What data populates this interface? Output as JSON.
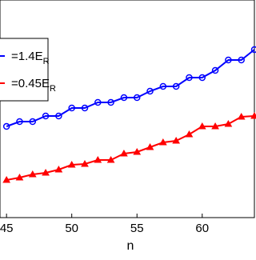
{
  "chart_data": {
    "type": "line",
    "xlabel": "n",
    "x": [
      45,
      46,
      47,
      48,
      49,
      50,
      51,
      52,
      53,
      54,
      55,
      56,
      57,
      58,
      59,
      60,
      61,
      62,
      63,
      64
    ],
    "series": [
      {
        "name": "=1.4E",
        "name_sub": "R",
        "color": "#0000ff",
        "marker": "circle",
        "values": [
          114,
          120,
          120,
          127,
          127,
          137,
          137,
          144,
          144,
          150,
          150,
          158,
          164,
          164,
          175,
          175,
          184,
          197,
          197,
          210
        ]
      },
      {
        "name": "=0.45E",
        "name_sub": "R",
        "color": "#ff0000",
        "marker": "triangle",
        "values": [
          47,
          50,
          54,
          56,
          60,
          66,
          67,
          72,
          72,
          80,
          82,
          88,
          94,
          96,
          104,
          114,
          114,
          117,
          126,
          127
        ]
      }
    ],
    "xlim": [
      44.5,
      64
    ],
    "xticks": [
      45,
      50,
      55,
      60
    ],
    "ylim": [
      0,
      272
    ]
  }
}
